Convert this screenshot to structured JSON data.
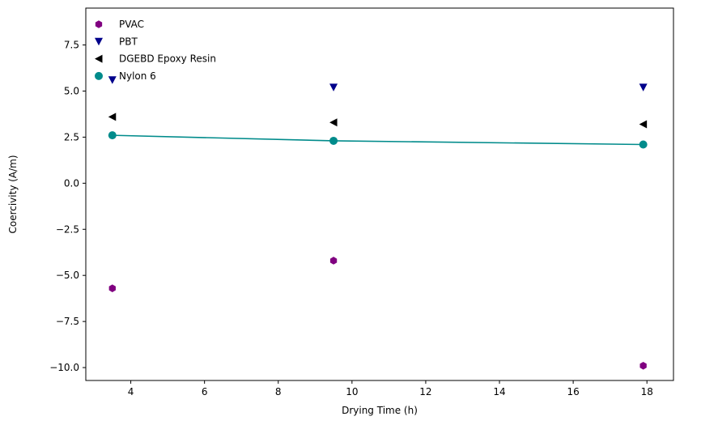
{
  "chart_data": {
    "type": "scatter",
    "title": "",
    "xlabel": "Drying Time (h)",
    "ylabel": "Coercivity (A/m)",
    "xlim": [
      2.78,
      18.72
    ],
    "ylim": [
      -10.7,
      9.5
    ],
    "xticks": [
      4,
      6,
      8,
      10,
      12,
      14,
      16,
      18
    ],
    "yticks": [
      -10.0,
      -7.5,
      -5.0,
      -2.5,
      0.0,
      2.5,
      5.0,
      7.5
    ],
    "xtick_labels": [
      "4",
      "6",
      "8",
      "10",
      "12",
      "14",
      "16",
      "18"
    ],
    "ytick_labels": [
      "−10.0",
      "−7.5",
      "−5.0",
      "−2.5",
      "0.0",
      "2.5",
      "5.0",
      "7.5"
    ],
    "grid": false,
    "legend_position": "top-left",
    "series": [
      {
        "name": "PVAC",
        "marker": "hexagon",
        "color": "#800080",
        "line": false,
        "x": [
          3.5,
          9.5,
          17.9
        ],
        "y": [
          -5.7,
          -4.2,
          -9.9
        ]
      },
      {
        "name": "PBT",
        "marker": "triangle-down",
        "color": "#00008b",
        "line": false,
        "x": [
          3.5,
          9.5,
          17.9
        ],
        "y": [
          5.6,
          5.2,
          5.2
        ]
      },
      {
        "name": "DGEBD Epoxy Resin",
        "marker": "triangle-left",
        "color": "#000000",
        "line": false,
        "x": [
          3.5,
          9.5,
          17.9
        ],
        "y": [
          3.6,
          3.3,
          3.2
        ]
      },
      {
        "name": "Nylon 6",
        "marker": "circle",
        "color": "#008b8b",
        "line": true,
        "x": [
          3.5,
          9.5,
          17.9
        ],
        "y": [
          2.6,
          2.3,
          2.1
        ]
      }
    ]
  }
}
